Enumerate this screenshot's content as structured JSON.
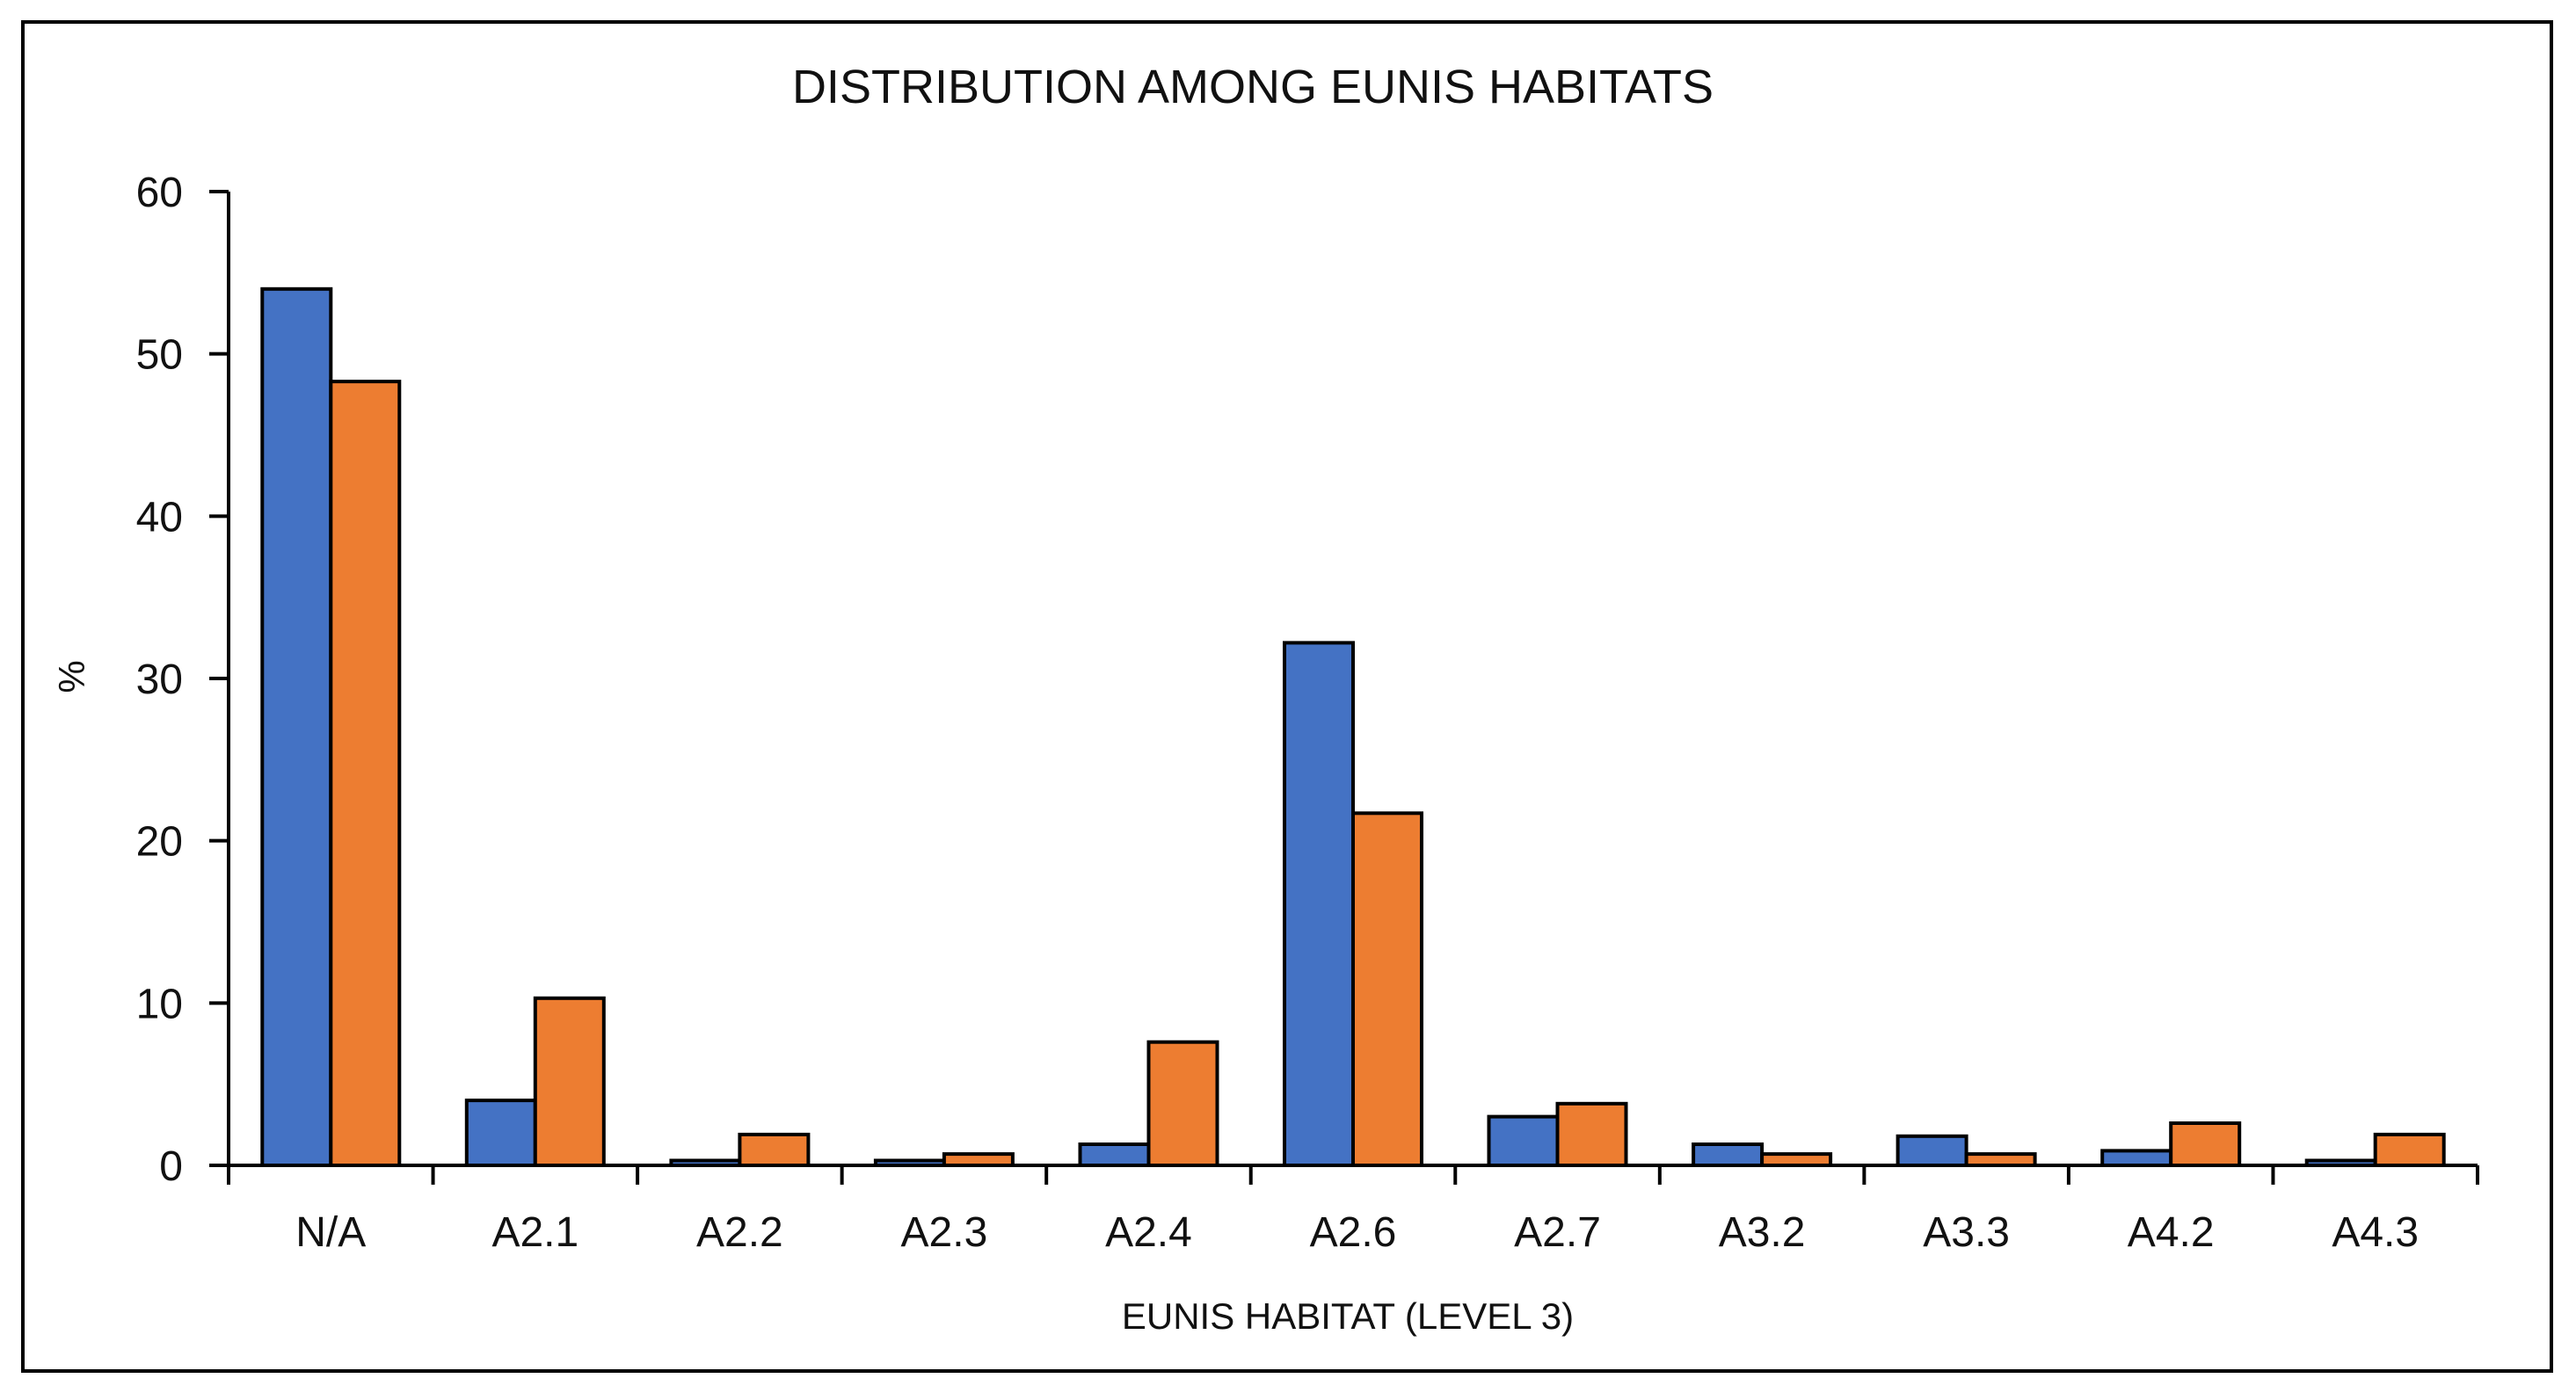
{
  "chart_data": {
    "type": "bar",
    "title": "DISTRIBUTION AMONG EUNIS HABITATS",
    "xlabel": "EUNIS HABITAT (LEVEL 3)",
    "ylabel": "%",
    "ylim": [
      0,
      60
    ],
    "yticks": [
      "0",
      "10",
      "20",
      "30",
      "40",
      "50",
      "60"
    ],
    "grid": false,
    "legend": "none",
    "categories": [
      "N/A",
      "A2.1",
      "A2.2",
      "A2.3",
      "A2.4",
      "A2.6",
      "A2.7",
      "A3.2",
      "A3.3",
      "A4.2",
      "A4.3"
    ],
    "series": [
      {
        "name": "series-1",
        "color": "#4472C4",
        "values": [
          54,
          4,
          0.3,
          0.3,
          1.3,
          32.2,
          3,
          1.3,
          1.8,
          0.9,
          0.3
        ]
      },
      {
        "name": "series-2",
        "color": "#ED7D31",
        "values": [
          48.3,
          10.3,
          1.9,
          0.7,
          7.6,
          21.7,
          3.8,
          0.7,
          0.7,
          2.6,
          1.9
        ]
      }
    ]
  }
}
